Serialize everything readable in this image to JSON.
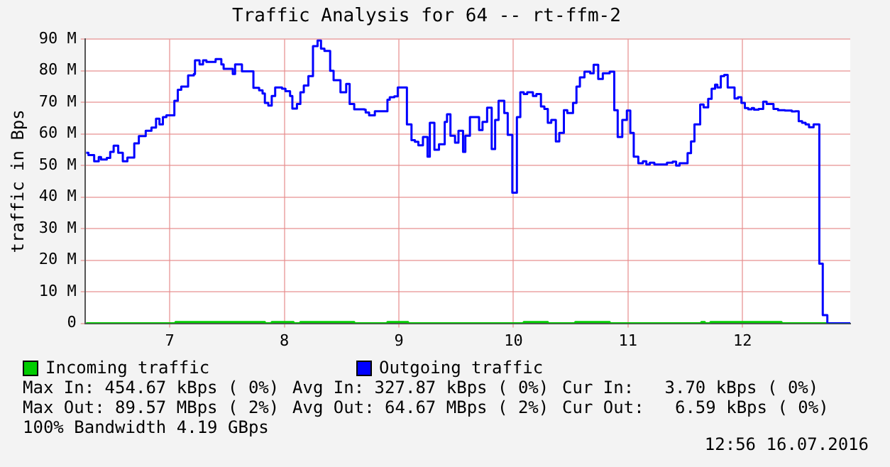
{
  "chart_data": {
    "type": "step",
    "title": "Traffic Analysis for 64 -- rt-ffm-2",
    "ylabel": "traffic in Bps",
    "xlim": [
      6.26,
      12.94
    ],
    "xticks": [
      7,
      8,
      9,
      10,
      11,
      12
    ],
    "ylim": [
      0,
      90
    ],
    "yticks": [
      0,
      {
        "value": 10,
        "label": "10 M"
      },
      {
        "value": 20,
        "label": "20 M"
      },
      {
        "value": 30,
        "label": "30 M"
      },
      {
        "value": 40,
        "label": "40 M"
      },
      {
        "value": 50,
        "label": "50 M"
      },
      {
        "value": 60,
        "label": "60 M"
      },
      {
        "value": 70,
        "label": "70 M"
      },
      {
        "value": 80,
        "label": "80 M"
      },
      {
        "value": 90,
        "label": "90 M"
      }
    ],
    "grid": true,
    "legend": "bottom",
    "series": [
      {
        "name": "Incoming traffic",
        "color": "#00cc00",
        "x": [
          6.27,
          7.05,
          7.83,
          7.89,
          8.08,
          8.14,
          8.61,
          8.9,
          9.08,
          10.09,
          10.3,
          10.54,
          10.84,
          11.64,
          11.67,
          11.72,
          12.34,
          12.94
        ],
        "values": [
          0,
          0.4,
          0,
          0.4,
          0,
          0.4,
          0,
          0.4,
          0,
          0.4,
          0,
          0.4,
          0,
          0.4,
          0,
          0.4,
          0,
          0
        ]
      },
      {
        "name": "Outgoing traffic",
        "color": "#0000ff",
        "x": [
          6.27,
          6.29,
          6.34,
          6.38,
          6.4,
          6.45,
          6.48,
          6.51,
          6.55,
          6.59,
          6.63,
          6.69,
          6.73,
          6.79,
          6.84,
          6.88,
          6.91,
          6.94,
          6.97,
          7.04,
          7.07,
          7.1,
          7.16,
          7.21,
          7.22,
          7.26,
          7.29,
          7.32,
          7.4,
          7.45,
          7.47,
          7.55,
          7.57,
          7.63,
          7.73,
          7.78,
          7.81,
          7.83,
          7.86,
          7.89,
          7.92,
          7.98,
          8.01,
          8.05,
          8.07,
          8.11,
          8.14,
          8.17,
          8.21,
          8.25,
          8.29,
          8.32,
          8.35,
          8.4,
          8.43,
          8.49,
          8.54,
          8.57,
          8.61,
          8.7,
          8.71,
          8.74,
          8.79,
          8.9,
          8.92,
          8.96,
          8.99,
          9.07,
          9.11,
          9.14,
          9.17,
          9.21,
          9.25,
          9.27,
          9.31,
          9.35,
          9.4,
          9.42,
          9.45,
          9.49,
          9.52,
          9.56,
          9.58,
          9.62,
          9.7,
          9.73,
          9.77,
          9.81,
          9.84,
          9.87,
          9.92,
          9.95,
          9.99,
          10.03,
          10.06,
          10.09,
          10.12,
          10.17,
          10.2,
          10.24,
          10.27,
          10.3,
          10.33,
          10.37,
          10.4,
          10.44,
          10.47,
          10.52,
          10.55,
          10.58,
          10.62,
          10.67,
          10.7,
          10.74,
          10.78,
          10.84,
          10.88,
          10.91,
          10.95,
          10.99,
          11.02,
          11.05,
          11.09,
          11.13,
          11.16,
          11.19,
          11.23,
          11.34,
          11.39,
          11.42,
          11.45,
          11.52,
          11.55,
          11.58,
          11.63,
          11.66,
          11.7,
          11.73,
          11.76,
          11.78,
          11.81,
          11.84,
          11.87,
          11.93,
          11.96,
          11.99,
          12.02,
          12.05,
          12.08,
          12.1,
          12.14,
          12.18,
          12.21,
          12.27,
          12.31,
          12.37,
          12.43,
          12.46,
          12.49,
          12.52,
          12.55,
          12.58,
          12.62,
          12.67,
          12.7,
          12.74,
          12.94
        ],
        "values": [
          54,
          53.3,
          51.3,
          52.7,
          51.9,
          52.4,
          54.3,
          56.3,
          54,
          51.3,
          52.5,
          57,
          59.3,
          61,
          62,
          64.8,
          63,
          65.3,
          65.9,
          70.5,
          74,
          75,
          78.5,
          79,
          83.3,
          82,
          83.3,
          82.8,
          83.7,
          82,
          80.6,
          79,
          82,
          79.8,
          74.6,
          73.8,
          72.8,
          69.8,
          69,
          72,
          74.7,
          74.3,
          73.5,
          72,
          68,
          69.5,
          73.2,
          75.3,
          78.3,
          87.8,
          89.6,
          87,
          86.3,
          80,
          77,
          73.2,
          75.8,
          69.5,
          67.8,
          67.7,
          66.8,
          65.9,
          67.2,
          70.8,
          71.6,
          71.9,
          74.7,
          63,
          58,
          57.5,
          56.4,
          59,
          52.8,
          63.5,
          55,
          56.7,
          63.8,
          66.2,
          59.4,
          57.2,
          61,
          54.3,
          59.4,
          65.3,
          61.2,
          63.8,
          68.3,
          55.2,
          64.4,
          70.5,
          66.6,
          59.7,
          41.4,
          65.3,
          73.2,
          72.6,
          73.2,
          72,
          72.6,
          68.7,
          67.9,
          63.5,
          64.4,
          57.6,
          60.3,
          67.5,
          66.6,
          69.8,
          75,
          77.9,
          79.7,
          79.2,
          81.9,
          77.4,
          79.2,
          79.7,
          67.5,
          59,
          64.4,
          67.4,
          60.3,
          52.8,
          50.7,
          51.3,
          50.3,
          50.9,
          50.3,
          50.9,
          51.2,
          50,
          50.7,
          53.9,
          57.6,
          63,
          69.3,
          68.4,
          71.1,
          74.3,
          75.6,
          74.7,
          78.3,
          78.7,
          74.7,
          71.2,
          71.6,
          69.8,
          68.2,
          67.8,
          68.2,
          67.7,
          67.9,
          70.2,
          69.5,
          67.9,
          67.5,
          67.4,
          67.1,
          67.2,
          64,
          63.5,
          63,
          62.1,
          63,
          18.9,
          2.6,
          0,
          0
        ]
      }
    ],
    "annotations": [
      "Max In: 454.67 kBps ( 0%)",
      "Avg In: 327.87 kBps ( 0%)",
      "Cur In:   3.70 kBps ( 0%)",
      "Max Out: 89.57 MBps ( 2%)",
      "Avg Out: 64.67 MBps ( 2%)",
      "Cur Out:   6.59 kBps ( 0%)",
      "100% Bandwidth 4.19 GBps",
      "12:56 16.07.2016"
    ]
  }
}
